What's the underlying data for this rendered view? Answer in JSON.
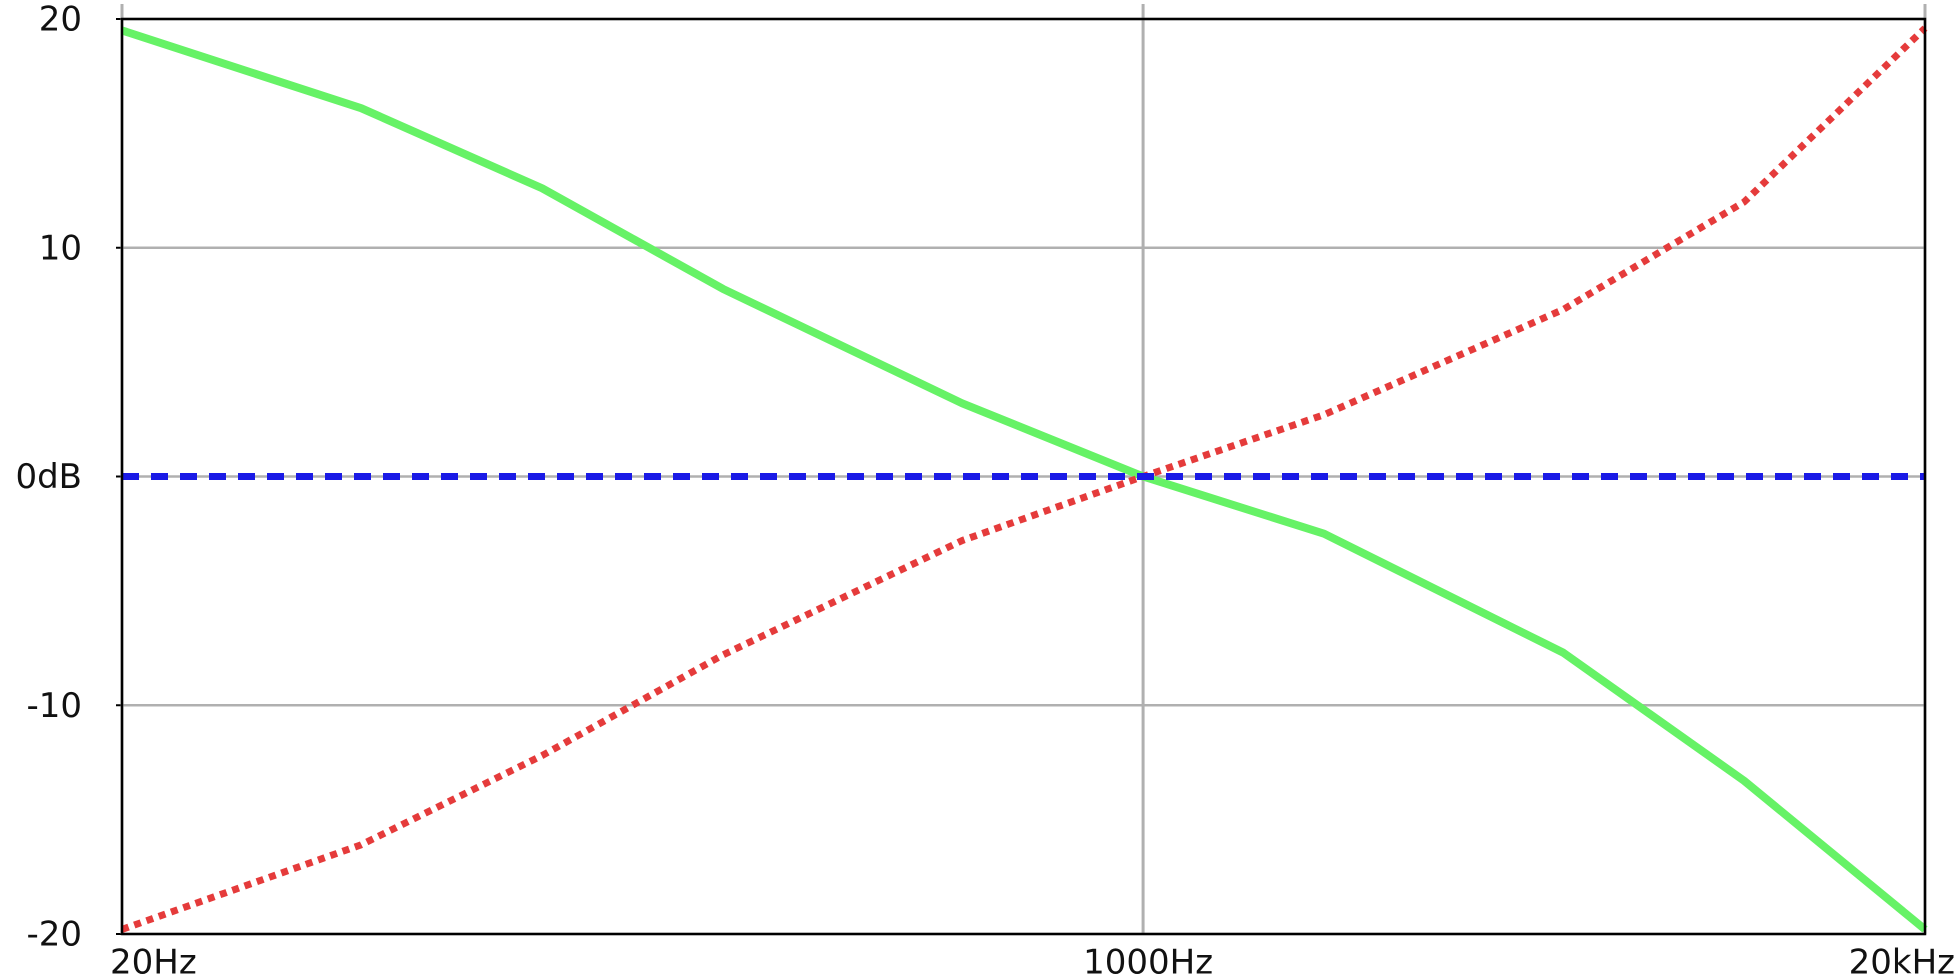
{
  "chart_data": {
    "type": "line",
    "x": [
      20,
      50,
      100,
      200,
      500,
      1000,
      2000,
      5000,
      10000,
      20000
    ],
    "series": [
      {
        "color": "#66f266",
        "dash": "solid",
        "values": [
          19.5,
          16.1,
          12.6,
          8.2,
          3.2,
          0,
          -2.5,
          -7.7,
          -13.3,
          -19.8
        ]
      },
      {
        "color": "#e53b3b",
        "dash": "dotted",
        "values": [
          -19.8,
          -16.1,
          -12.2,
          -7.8,
          -2.8,
          0,
          2.7,
          7.3,
          12,
          19.6
        ]
      },
      {
        "color": "#1a1ae6",
        "dash": "dashed",
        "values": [
          0,
          0,
          0,
          0,
          0,
          0,
          0,
          0,
          0,
          0
        ]
      }
    ],
    "xlim": [
      20,
      20000
    ],
    "xscale": "log",
    "xticks": [
      {
        "value": 20,
        "label": "20Hz"
      },
      {
        "value": 1000,
        "label": "1000Hz"
      },
      {
        "value": 20000,
        "label": "20kHz"
      }
    ],
    "ylim": [
      -20,
      20
    ],
    "yticks": [
      20,
      10,
      {
        "value": 0,
        "label": "0dB"
      },
      -10,
      -20
    ],
    "grid": true
  }
}
